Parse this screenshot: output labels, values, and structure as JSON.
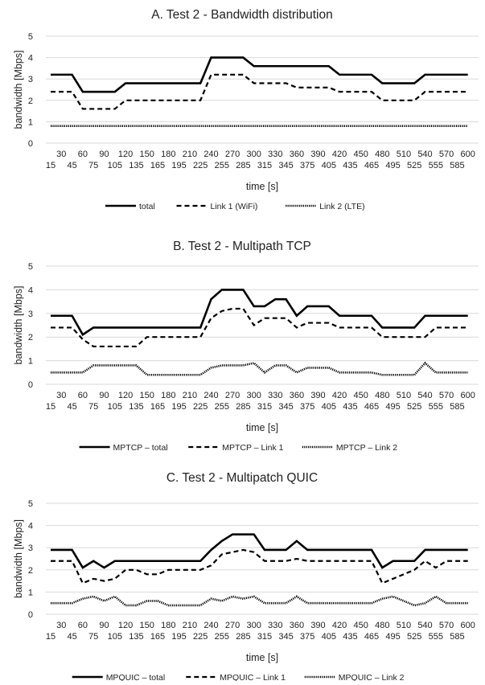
{
  "chart_data": [
    {
      "type": "line",
      "title": "A. Test 2 - Bandwidth distribution",
      "xlabel": "time [s]",
      "ylabel": "bandwidth [Mbps]",
      "ylim": [
        0,
        5
      ],
      "yticks": [
        "0",
        "1",
        "2",
        "3",
        "4",
        "5"
      ],
      "grid": true,
      "legend_position": "bottom",
      "x": [
        15,
        30,
        45,
        60,
        75,
        90,
        105,
        120,
        135,
        150,
        165,
        180,
        195,
        210,
        225,
        240,
        255,
        270,
        285,
        300,
        315,
        330,
        345,
        360,
        375,
        390,
        405,
        420,
        435,
        450,
        465,
        480,
        495,
        510,
        525,
        540,
        555,
        570,
        585,
        600
      ],
      "series": [
        {
          "name": "total",
          "style": "solid",
          "values": [
            3.2,
            3.2,
            3.2,
            2.4,
            2.4,
            2.4,
            2.4,
            2.8,
            2.8,
            2.8,
            2.8,
            2.8,
            2.8,
            2.8,
            2.8,
            4.0,
            4.0,
            4.0,
            4.0,
            3.6,
            3.6,
            3.6,
            3.6,
            3.6,
            3.6,
            3.6,
            3.6,
            3.2,
            3.2,
            3.2,
            3.2,
            2.8,
            2.8,
            2.8,
            2.8,
            3.2,
            3.2,
            3.2,
            3.2,
            3.2
          ]
        },
        {
          "name": "Link 1 (WiFi)",
          "style": "dashed",
          "values": [
            2.4,
            2.4,
            2.4,
            1.6,
            1.6,
            1.6,
            1.6,
            2.0,
            2.0,
            2.0,
            2.0,
            2.0,
            2.0,
            2.0,
            2.0,
            3.2,
            3.2,
            3.2,
            3.2,
            2.8,
            2.8,
            2.8,
            2.8,
            2.6,
            2.6,
            2.6,
            2.6,
            2.4,
            2.4,
            2.4,
            2.4,
            2.0,
            2.0,
            2.0,
            2.0,
            2.4,
            2.4,
            2.4,
            2.4,
            2.4
          ]
        },
        {
          "name": "Link 2 (LTE)",
          "style": "dotted",
          "values": [
            0.8,
            0.8,
            0.8,
            0.8,
            0.8,
            0.8,
            0.8,
            0.8,
            0.8,
            0.8,
            0.8,
            0.8,
            0.8,
            0.8,
            0.8,
            0.8,
            0.8,
            0.8,
            0.8,
            0.8,
            0.8,
            0.8,
            0.8,
            0.8,
            0.8,
            0.8,
            0.8,
            0.8,
            0.8,
            0.8,
            0.8,
            0.8,
            0.8,
            0.8,
            0.8,
            0.8,
            0.8,
            0.8,
            0.8,
            0.8
          ]
        }
      ]
    },
    {
      "type": "line",
      "title": "B. Test 2 - Multipath TCP",
      "xlabel": "time [s]",
      "ylabel": "bandwidth [Mbps]",
      "ylim": [
        0,
        5
      ],
      "yticks": [
        "0",
        "1",
        "2",
        "3",
        "4",
        "5"
      ],
      "grid": true,
      "legend_position": "bottom",
      "x": [
        15,
        30,
        45,
        60,
        75,
        90,
        105,
        120,
        135,
        150,
        165,
        180,
        195,
        210,
        225,
        240,
        255,
        270,
        285,
        300,
        315,
        330,
        345,
        360,
        375,
        390,
        405,
        420,
        435,
        450,
        465,
        480,
        495,
        510,
        525,
        540,
        555,
        570,
        585,
        600
      ],
      "series": [
        {
          "name": "MPTCP – total",
          "style": "solid",
          "values": [
            2.9,
            2.9,
            2.9,
            2.1,
            2.4,
            2.4,
            2.4,
            2.4,
            2.4,
            2.4,
            2.4,
            2.4,
            2.4,
            2.4,
            2.4,
            3.6,
            4.0,
            4.0,
            4.0,
            3.3,
            3.3,
            3.6,
            3.6,
            2.9,
            3.3,
            3.3,
            3.3,
            2.9,
            2.9,
            2.9,
            2.9,
            2.4,
            2.4,
            2.4,
            2.4,
            2.9,
            2.9,
            2.9,
            2.9,
            2.9
          ]
        },
        {
          "name": "MPTCP – Link 1",
          "style": "dashed",
          "values": [
            2.4,
            2.4,
            2.4,
            1.9,
            1.6,
            1.6,
            1.6,
            1.6,
            1.6,
            2.0,
            2.0,
            2.0,
            2.0,
            2.0,
            2.0,
            2.8,
            3.1,
            3.2,
            3.2,
            2.5,
            2.8,
            2.8,
            2.8,
            2.4,
            2.6,
            2.6,
            2.6,
            2.4,
            2.4,
            2.4,
            2.4,
            2.0,
            2.0,
            2.0,
            2.0,
            2.0,
            2.4,
            2.4,
            2.4,
            2.4
          ]
        },
        {
          "name": "MPTCP – Link 2",
          "style": "dotted",
          "values": [
            0.5,
            0.5,
            0.5,
            0.5,
            0.8,
            0.8,
            0.8,
            0.8,
            0.8,
            0.4,
            0.4,
            0.4,
            0.4,
            0.4,
            0.4,
            0.7,
            0.8,
            0.8,
            0.8,
            0.9,
            0.5,
            0.8,
            0.8,
            0.5,
            0.7,
            0.7,
            0.7,
            0.5,
            0.5,
            0.5,
            0.5,
            0.4,
            0.4,
            0.4,
            0.4,
            0.9,
            0.5,
            0.5,
            0.5,
            0.5
          ]
        }
      ]
    },
    {
      "type": "line",
      "title": "C. Test 2 - Multipatch QUIC",
      "xlabel": "time [s]",
      "ylabel": "bandwidth [Mbps]",
      "ylim": [
        0,
        5
      ],
      "yticks": [
        "0",
        "1",
        "2",
        "3",
        "4",
        "5"
      ],
      "grid": true,
      "legend_position": "bottom",
      "x": [
        15,
        30,
        45,
        60,
        75,
        90,
        105,
        120,
        135,
        150,
        165,
        180,
        195,
        210,
        225,
        240,
        255,
        270,
        285,
        300,
        315,
        330,
        345,
        360,
        375,
        390,
        405,
        420,
        435,
        450,
        465,
        480,
        495,
        510,
        525,
        540,
        555,
        570,
        585,
        600
      ],
      "series": [
        {
          "name": "MPQUIC – total",
          "style": "solid",
          "values": [
            2.9,
            2.9,
            2.9,
            2.1,
            2.4,
            2.1,
            2.4,
            2.4,
            2.4,
            2.4,
            2.4,
            2.4,
            2.4,
            2.4,
            2.4,
            2.9,
            3.3,
            3.6,
            3.6,
            3.6,
            2.9,
            2.9,
            2.9,
            3.3,
            2.9,
            2.9,
            2.9,
            2.9,
            2.9,
            2.9,
            2.9,
            2.1,
            2.4,
            2.4,
            2.4,
            2.9,
            2.9,
            2.9,
            2.9,
            2.9
          ]
        },
        {
          "name": "MPQUIC – Link 1",
          "style": "dashed",
          "values": [
            2.4,
            2.4,
            2.4,
            1.4,
            1.6,
            1.5,
            1.6,
            2.0,
            2.0,
            1.8,
            1.8,
            2.0,
            2.0,
            2.0,
            2.0,
            2.2,
            2.7,
            2.8,
            2.9,
            2.8,
            2.4,
            2.4,
            2.4,
            2.5,
            2.4,
            2.4,
            2.4,
            2.4,
            2.4,
            2.4,
            2.4,
            1.4,
            1.6,
            1.8,
            2.0,
            2.4,
            2.1,
            2.4,
            2.4,
            2.4
          ]
        },
        {
          "name": "MPQUIC – Link 2",
          "style": "dotted",
          "values": [
            0.5,
            0.5,
            0.5,
            0.7,
            0.8,
            0.6,
            0.8,
            0.4,
            0.4,
            0.6,
            0.6,
            0.4,
            0.4,
            0.4,
            0.4,
            0.7,
            0.6,
            0.8,
            0.7,
            0.8,
            0.5,
            0.5,
            0.5,
            0.8,
            0.5,
            0.5,
            0.5,
            0.5,
            0.5,
            0.5,
            0.5,
            0.7,
            0.8,
            0.6,
            0.4,
            0.5,
            0.8,
            0.5,
            0.5,
            0.5
          ]
        }
      ]
    }
  ]
}
